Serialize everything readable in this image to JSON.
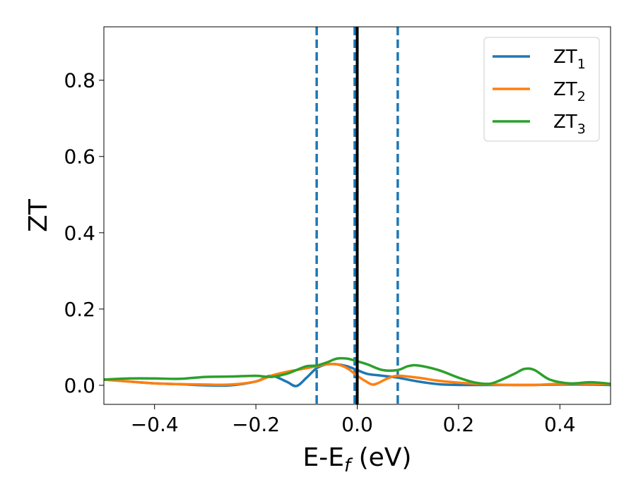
{
  "chart_data": {
    "type": "line",
    "title": "",
    "xlabel": "E-E",
    "xlabel_sub": "f",
    "xlabel_unit": " (eV)",
    "ylabel": "ZT",
    "xlim": [
      -0.5,
      0.5
    ],
    "ylim": [
      -0.05,
      0.94
    ],
    "xticks": [
      -0.4,
      -0.2,
      0.0,
      0.2,
      0.4
    ],
    "xtick_labels": [
      "−0.4",
      "−0.2",
      "0.0",
      "0.2",
      "0.4"
    ],
    "yticks": [
      0.0,
      0.2,
      0.4,
      0.6,
      0.8
    ],
    "ytick_labels": [
      "0.0",
      "0.2",
      "0.4",
      "0.6",
      "0.8"
    ],
    "grid": false,
    "legend_position": "top-right",
    "vertical_lines": [
      {
        "x": -0.08,
        "style": "dashed",
        "color": "#1f77b4"
      },
      {
        "x": -0.005,
        "style": "dashed",
        "color": "#1f77b4"
      },
      {
        "x": 0.08,
        "style": "dashed",
        "color": "#1f77b4"
      },
      {
        "x": 0.0,
        "style": "solid",
        "color": "#000000"
      }
    ],
    "series": [
      {
        "name": "ZT",
        "name_sub": "1",
        "color": "#1f77b4",
        "x": [
          -0.5,
          -0.45,
          -0.4,
          -0.35,
          -0.3,
          -0.25,
          -0.2,
          -0.17,
          -0.14,
          -0.12,
          -0.1,
          -0.08,
          -0.06,
          -0.04,
          -0.02,
          0.0,
          0.02,
          0.05,
          0.08,
          0.12,
          0.16,
          0.2,
          0.25,
          0.3,
          0.35,
          0.4,
          0.45,
          0.5
        ],
        "y": [
          0.015,
          0.01,
          0.005,
          0.003,
          0.0,
          0.0,
          0.01,
          0.025,
          0.01,
          -0.002,
          0.02,
          0.045,
          0.055,
          0.055,
          0.05,
          0.04,
          0.03,
          0.025,
          0.02,
          0.01,
          0.003,
          0.001,
          0.001,
          0.001,
          0.001,
          0.002,
          0.002,
          0.001
        ]
      },
      {
        "name": "ZT",
        "name_sub": "2",
        "color": "#ff7f0e",
        "x": [
          -0.5,
          -0.45,
          -0.4,
          -0.35,
          -0.3,
          -0.25,
          -0.2,
          -0.17,
          -0.14,
          -0.12,
          -0.1,
          -0.08,
          -0.06,
          -0.04,
          -0.02,
          0.0,
          0.02,
          0.03,
          0.04,
          0.06,
          0.08,
          0.12,
          0.16,
          0.2,
          0.25,
          0.3,
          0.35,
          0.4,
          0.45,
          0.5
        ],
        "y": [
          0.015,
          0.01,
          0.005,
          0.003,
          0.002,
          0.002,
          0.01,
          0.025,
          0.035,
          0.04,
          0.045,
          0.05,
          0.055,
          0.055,
          0.045,
          0.025,
          0.008,
          0.002,
          0.005,
          0.018,
          0.025,
          0.02,
          0.012,
          0.007,
          0.003,
          0.001,
          0.001,
          0.004,
          0.004,
          0.003
        ]
      },
      {
        "name": "ZT",
        "name_sub": "3",
        "color": "#2ca02c",
        "x": [
          -0.5,
          -0.45,
          -0.4,
          -0.35,
          -0.3,
          -0.25,
          -0.2,
          -0.17,
          -0.14,
          -0.12,
          -0.1,
          -0.08,
          -0.06,
          -0.04,
          -0.02,
          0.0,
          0.02,
          0.05,
          0.08,
          0.1,
          0.12,
          0.16,
          0.2,
          0.23,
          0.26,
          0.28,
          0.31,
          0.33,
          0.35,
          0.38,
          0.42,
          0.46,
          0.5
        ],
        "y": [
          0.015,
          0.018,
          0.018,
          0.017,
          0.022,
          0.023,
          0.025,
          0.022,
          0.03,
          0.04,
          0.05,
          0.052,
          0.06,
          0.07,
          0.07,
          0.063,
          0.055,
          0.04,
          0.04,
          0.05,
          0.052,
          0.04,
          0.02,
          0.008,
          0.004,
          0.012,
          0.03,
          0.043,
          0.04,
          0.015,
          0.005,
          0.008,
          0.004
        ]
      }
    ]
  }
}
